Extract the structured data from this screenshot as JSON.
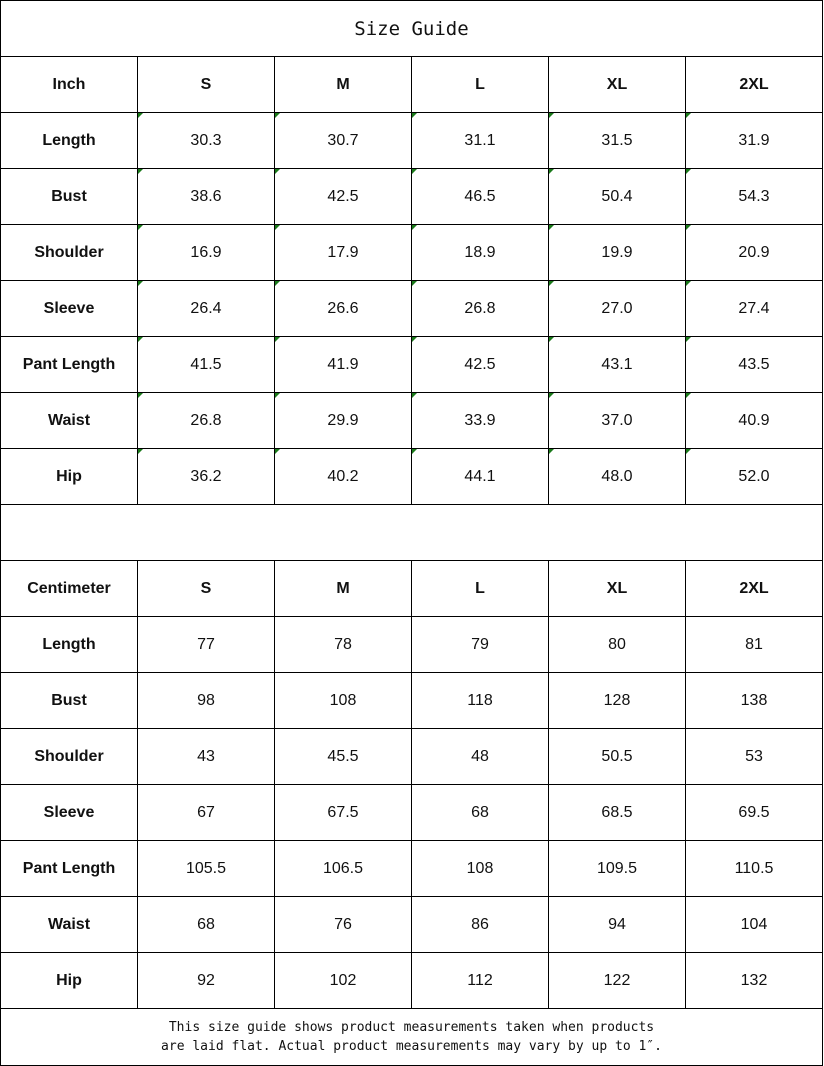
{
  "title": "Size Guide",
  "sizes": [
    "S",
    "M",
    "L",
    "XL",
    "2XL"
  ],
  "inch": {
    "unit_label": "Inch",
    "rows": [
      {
        "label": "Length",
        "values": [
          "30.3",
          "30.7",
          "31.1",
          "31.5",
          "31.9"
        ]
      },
      {
        "label": "Bust",
        "values": [
          "38.6",
          "42.5",
          "46.5",
          "50.4",
          "54.3"
        ]
      },
      {
        "label": "Shoulder",
        "values": [
          "16.9",
          "17.9",
          "18.9",
          "19.9",
          "20.9"
        ]
      },
      {
        "label": "Sleeve",
        "values": [
          "26.4",
          "26.6",
          "26.8",
          "27.0",
          "27.4"
        ]
      },
      {
        "label": "Pant Length",
        "values": [
          "41.5",
          "41.9",
          "42.5",
          "43.1",
          "43.5"
        ]
      },
      {
        "label": "Waist",
        "values": [
          "26.8",
          "29.9",
          "33.9",
          "37.0",
          "40.9"
        ]
      },
      {
        "label": "Hip",
        "values": [
          "36.2",
          "40.2",
          "44.1",
          "48.0",
          "52.0"
        ]
      }
    ]
  },
  "cm": {
    "unit_label": "Centimeter",
    "rows": [
      {
        "label": "Length",
        "values": [
          "77",
          "78",
          "79",
          "80",
          "81"
        ]
      },
      {
        "label": "Bust",
        "values": [
          "98",
          "108",
          "118",
          "128",
          "138"
        ]
      },
      {
        "label": "Shoulder",
        "values": [
          "43",
          "45.5",
          "48",
          "50.5",
          "53"
        ]
      },
      {
        "label": "Sleeve",
        "values": [
          "67",
          "67.5",
          "68",
          "68.5",
          "69.5"
        ]
      },
      {
        "label": "Pant Length",
        "values": [
          "105.5",
          "106.5",
          "108",
          "109.5",
          "110.5"
        ]
      },
      {
        "label": "Waist",
        "values": [
          "68",
          "76",
          "86",
          "94",
          "104"
        ]
      },
      {
        "label": "Hip",
        "values": [
          "92",
          "102",
          "112",
          "122",
          "132"
        ]
      }
    ]
  },
  "footer": {
    "line1": "This size guide shows product measurements taken when products",
    "line2": "are laid flat. Actual product measurements may vary by up to 1″."
  },
  "colors": {
    "error_indicator": "#1a7a1a",
    "grid": "#000000"
  }
}
